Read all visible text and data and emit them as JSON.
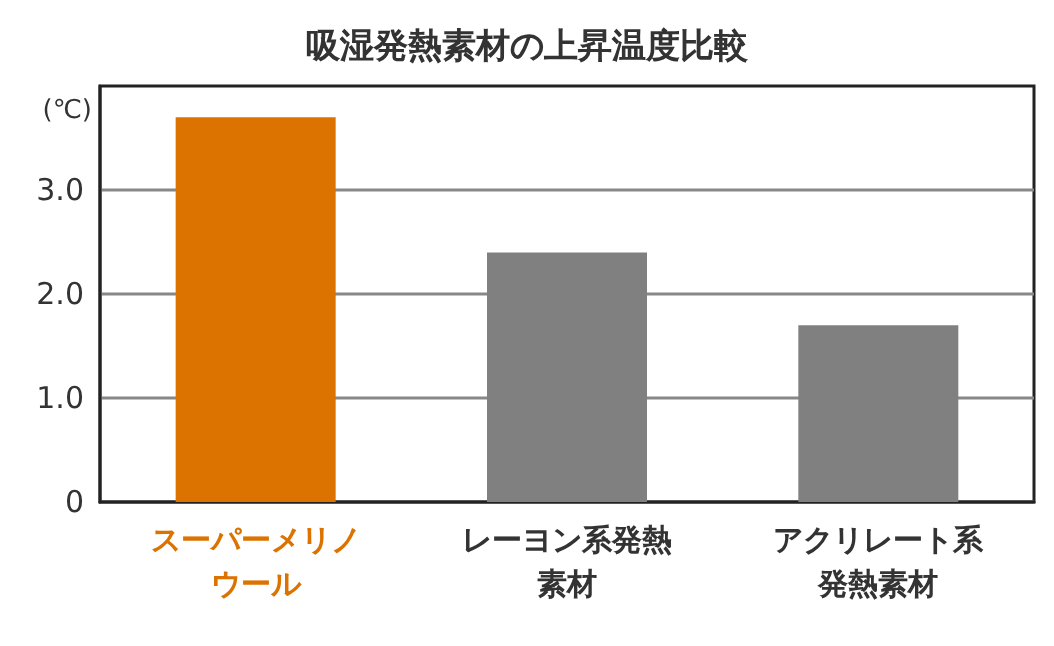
{
  "chart_data": {
    "type": "bar",
    "title": "吸湿発熱素材の上昇温度比較",
    "ylabel": "(℃)",
    "categories": [
      "スーパーメリノウール",
      "レーヨン系発熱素材",
      "アクリレート系発熱素材"
    ],
    "values": [
      3.7,
      2.4,
      1.7
    ],
    "colors": [
      "#dc7300",
      "#808080",
      "#808080"
    ],
    "ylim": [
      0,
      4
    ],
    "yticks": [
      0,
      {
        "value": 1,
        "label": "1.0"
      },
      {
        "value": 2,
        "label": "2.0"
      },
      {
        "value": 3,
        "label": "3.0"
      }
    ],
    "grid": "y"
  }
}
